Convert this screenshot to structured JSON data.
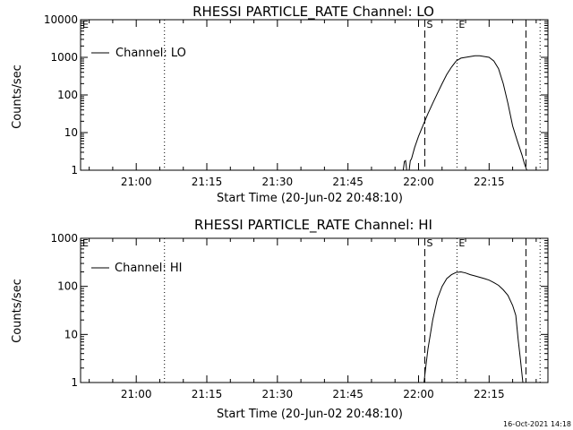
{
  "chart_data": [
    {
      "type": "line",
      "title": "RHESSI PARTICLE_RATE Channel: LO",
      "xlabel": "Start Time (20-Jun-02 20:48:10)",
      "ylabel": "Counts/sec",
      "y_scale": "log",
      "ylim": [
        1,
        10000
      ],
      "xlim": [
        "20:48:10",
        "22:27:30"
      ],
      "x_tick_labels": [
        "21:00",
        "21:15",
        "21:30",
        "21:45",
        "22:00",
        "22:15"
      ],
      "y_tick_labels": [
        "1",
        "10",
        "100",
        "1000",
        "10000"
      ],
      "legend": {
        "placement": "top-left",
        "entries": [
          "Channel: LO"
        ]
      },
      "grid": false,
      "markers": [
        {
          "label": "E",
          "style": "none",
          "time": "20:48:10"
        },
        {
          "label": "",
          "style": "dotted",
          "time": "21:06:00"
        },
        {
          "label": "S",
          "style": "dashed",
          "time": "22:01:20"
        },
        {
          "label": "E",
          "style": "dotted",
          "time": "22:08:10"
        },
        {
          "label": "",
          "style": "dashed",
          "time": "22:22:50"
        },
        {
          "label": "",
          "style": "dotted",
          "time": "22:25:50"
        }
      ],
      "series": [
        {
          "x": [
            "21:56:45",
            "21:57:00",
            "21:57:15",
            "21:57:30",
            "21:57:45",
            "21:58:00",
            "21:58:15",
            "21:58:30",
            "21:59:10",
            "22:00:00",
            "22:01:00",
            "22:02:00",
            "22:03:00",
            "22:04:00",
            "22:05:00",
            "22:06:00",
            "22:07:00",
            "22:08:00",
            "22:09:00",
            "22:10:00",
            "22:11:00",
            "22:12:00",
            "22:13:00",
            "22:14:00",
            "22:15:00",
            "22:16:00",
            "22:17:00",
            "22:18:00",
            "22:19:00",
            "22:20:00",
            "22:21:00",
            "22:22:00",
            "22:22:30",
            "22:23:00"
          ],
          "y": [
            1,
            1.7,
            1.8,
            1,
            1,
            1,
            1.8,
            2,
            4,
            8,
            16,
            32,
            60,
            110,
            200,
            350,
            550,
            800,
            950,
            1000,
            1050,
            1100,
            1100,
            1050,
            1000,
            800,
            500,
            200,
            60,
            15,
            6,
            2.5,
            1.5,
            1
          ]
        }
      ]
    },
    {
      "type": "line",
      "title": "RHESSI PARTICLE_RATE Channel: HI",
      "xlabel": "Start Time (20-Jun-02 20:48:10)",
      "ylabel": "Counts/sec",
      "y_scale": "log",
      "ylim": [
        1,
        1000
      ],
      "xlim": [
        "20:48:10",
        "22:27:30"
      ],
      "x_tick_labels": [
        "21:00",
        "21:15",
        "21:30",
        "21:45",
        "22:00",
        "22:15"
      ],
      "y_tick_labels": [
        "1",
        "10",
        "100",
        "1000"
      ],
      "legend": {
        "placement": "top-left",
        "entries": [
          "Channel: HI"
        ]
      },
      "grid": false,
      "markers": [
        {
          "label": "E",
          "style": "none",
          "time": "20:48:10"
        },
        {
          "label": "",
          "style": "dotted",
          "time": "21:06:00"
        },
        {
          "label": "S",
          "style": "dashed",
          "time": "22:01:20"
        },
        {
          "label": "E",
          "style": "dotted",
          "time": "22:08:10"
        },
        {
          "label": "",
          "style": "dashed",
          "time": "22:22:50"
        },
        {
          "label": "",
          "style": "dotted",
          "time": "22:25:50"
        }
      ],
      "series": [
        {
          "x": [
            "22:01:10",
            "22:01:30",
            "22:02:00",
            "22:03:00",
            "22:04:00",
            "22:05:00",
            "22:06:00",
            "22:07:00",
            "22:08:00",
            "22:09:00",
            "22:10:00",
            "22:11:00",
            "22:12:00",
            "22:13:00",
            "22:14:00",
            "22:15:00",
            "22:16:00",
            "22:17:00",
            "22:18:00",
            "22:19:00",
            "22:20:00",
            "22:20:40",
            "22:21:10",
            "22:21:40",
            "22:22:10"
          ],
          "y": [
            1,
            2,
            5,
            20,
            55,
            100,
            145,
            175,
            195,
            200,
            190,
            175,
            165,
            155,
            145,
            135,
            120,
            105,
            85,
            65,
            40,
            25,
            8,
            3,
            1
          ]
        }
      ]
    }
  ],
  "footer": {
    "timestamp": "16-Oct-2021 14:18"
  }
}
